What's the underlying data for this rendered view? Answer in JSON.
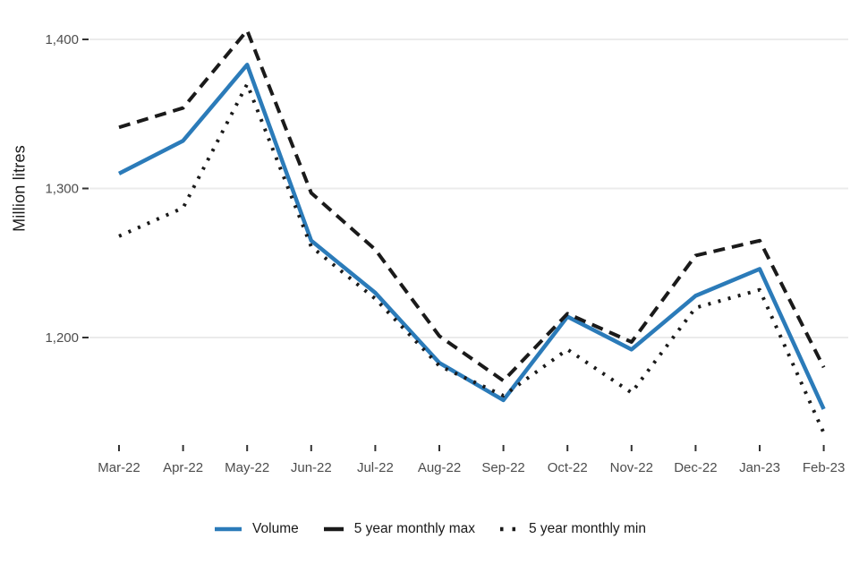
{
  "chart_data": {
    "type": "line",
    "title": "",
    "ylabel": "Million litres",
    "xlabel": "",
    "categories": [
      "Mar-22",
      "Apr-22",
      "May-22",
      "Jun-22",
      "Jul-22",
      "Aug-22",
      "Sep-22",
      "Oct-22",
      "Nov-22",
      "Dec-22",
      "Jan-23",
      "Feb-23"
    ],
    "yticks": [
      1400,
      1300,
      1200
    ],
    "ytick_labels": [
      "1,400",
      "1,300",
      "1,200"
    ],
    "ylim": [
      1120,
      1425
    ],
    "grid": "horizontal-only",
    "legend_position": "bottom-center",
    "series": [
      {
        "name": "Volume",
        "style": "solid",
        "color": "#2b7bb9",
        "values": [
          1310,
          1332,
          1383,
          1265,
          1230,
          1183,
          1158,
          1214,
          1192,
          1228,
          1246,
          1152
        ]
      },
      {
        "name": "5 year monthly max",
        "style": "dashed",
        "color": "#1a1a1a",
        "values": [
          1341,
          1354,
          1406,
          1297,
          1259,
          1201,
          1171,
          1216,
          1197,
          1255,
          1265,
          1180
        ]
      },
      {
        "name": "5 year monthly min",
        "style": "dotted",
        "color": "#1a1a1a",
        "values": [
          1268,
          1287,
          1370,
          1261,
          1226,
          1181,
          1161,
          1192,
          1163,
          1220,
          1232,
          1136
        ]
      }
    ],
    "colors": {
      "gridline": "#ebebeb",
      "axis_text": "#4d4d4d",
      "tick_mark": "#333333",
      "background": "#ffffff"
    }
  }
}
